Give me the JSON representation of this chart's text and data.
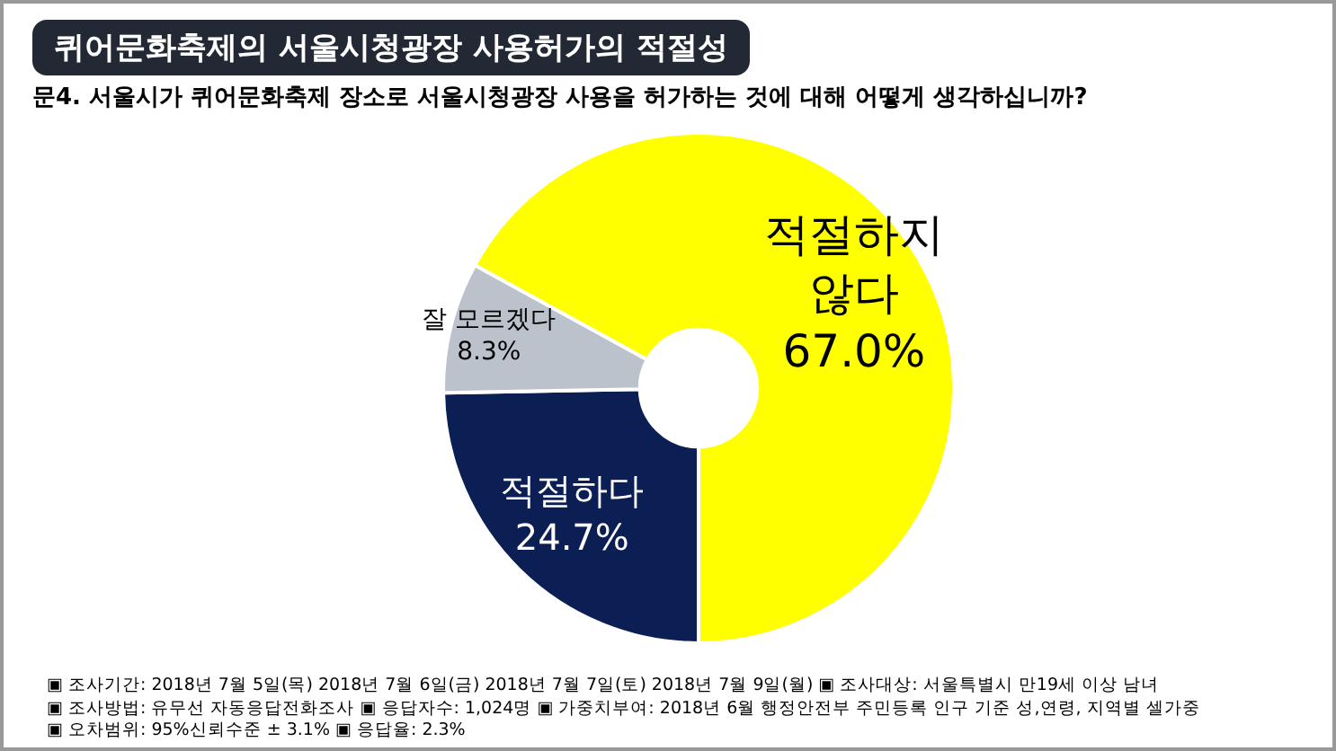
{
  "chart_data": {
    "type": "donut",
    "title": "퀴어문화축제의 서울시청광장 사용허가의 적절성",
    "subtitle": "문4. 서울시가 퀴어문화축제 장소로 서울시청광장 사용을 허가하는 것에 대해 어떻게 생각하십니까?",
    "categories": [
      "적절하지 않다",
      "적절하다",
      "잘 모르겠다"
    ],
    "values": [
      67.0,
      24.7,
      8.3
    ],
    "value_labels": [
      "67.0%",
      "24.7%",
      "8.3%"
    ],
    "colors": [
      "#ffff00",
      "#0b1f55",
      "#bcc2cc"
    ],
    "legend": false,
    "annotations": [
      "▣ 조사기간: 2018년 7월 5일(목) 2018년 7월 6일(금) 2018년 7월 7일(토) 2018년 7월 9일(월) ▣ 조사대상: 서울특별시 만19세 이상 남녀",
      "▣ 조사방법: 유무선 자동응답전화조사 ▣ 응답자수: 1,024명 ▣ 가중치부여: 2018년 6월 행정안전부 주민등록 인구 기준 성,연령, 지역별 셀가중",
      "▣ 오차범위: 95%신뢰수준 ± 3.1% ▣ 응답율: 2.3%"
    ]
  }
}
